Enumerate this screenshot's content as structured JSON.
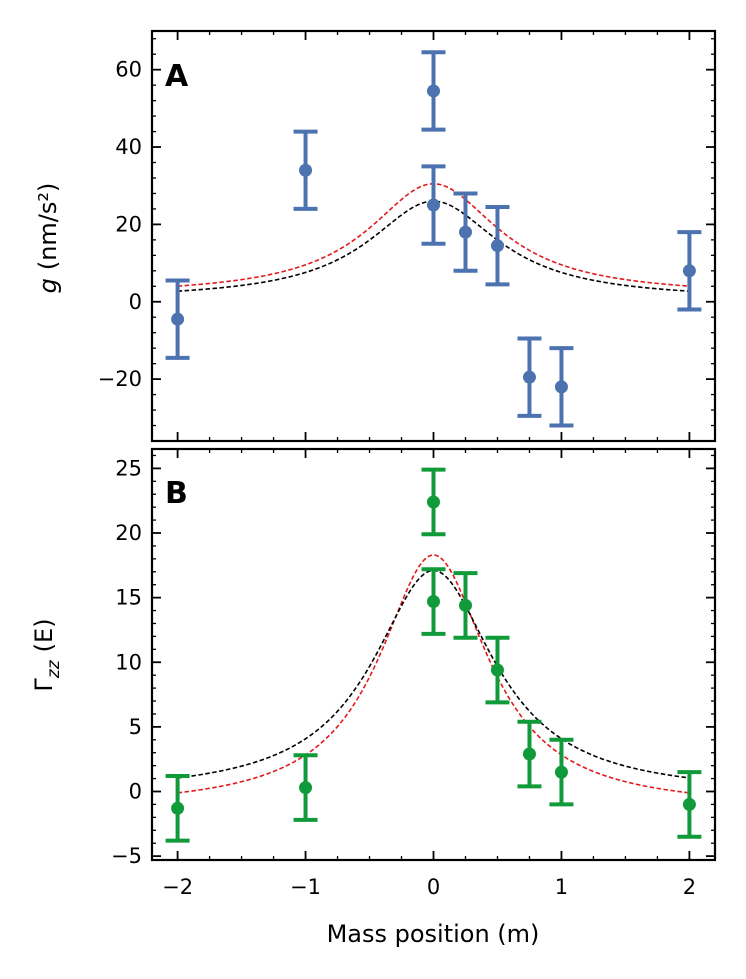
{
  "chart_data": [
    {
      "type": "scatter",
      "panel_label": "A",
      "ylabel_symbol": "g",
      "ylabel_unit": "(nm/s²)",
      "xlabel": "",
      "xlim": [
        -2.2,
        2.2
      ],
      "ylim": [
        -36,
        70
      ],
      "xticks": [
        -2,
        -1,
        0,
        1,
        2
      ],
      "yticks": [
        -20,
        0,
        20,
        40,
        60
      ],
      "ytick_labels": [
        "−20",
        "0",
        "20",
        "40",
        "60"
      ],
      "marker_color": "#4c72b0",
      "series": [
        {
          "name": "measurements",
          "points": [
            {
              "x": -2,
              "y": -4.5,
              "err": 10
            },
            {
              "x": -1,
              "y": 34,
              "err": 10
            },
            {
              "x": 0,
              "y": 54.5,
              "err": 10
            },
            {
              "x": 0,
              "y": 25,
              "err": 10
            },
            {
              "x": 0.25,
              "y": 18,
              "err": 10
            },
            {
              "x": 0.5,
              "y": 14.5,
              "err": 10
            },
            {
              "x": 0.75,
              "y": -19.5,
              "err": 10
            },
            {
              "x": 1,
              "y": -22,
              "err": 10
            },
            {
              "x": 2,
              "y": 8,
              "err": 10
            }
          ]
        }
      ],
      "model_curves": [
        {
          "name": "model-red",
          "color": "#e41a1c",
          "peak": 30.5,
          "base": 1.5,
          "width": 0.62
        },
        {
          "name": "model-black",
          "color": "#000000",
          "peak": 26,
          "base": 0.5,
          "width": 0.62
        }
      ]
    },
    {
      "type": "scatter",
      "panel_label": "B",
      "ylabel_symbol": "Γ",
      "ylabel_sub": "zz",
      "ylabel_unit": "(E)",
      "xlabel": "Mass position (m)",
      "xlim": [
        -2.2,
        2.2
      ],
      "ylim": [
        -5.3,
        26.5
      ],
      "xticks": [
        -2,
        -1,
        0,
        1,
        2
      ],
      "xtick_labels": [
        "−2",
        "−1",
        "0",
        "1",
        "2"
      ],
      "yticks": [
        -5,
        0,
        5,
        10,
        15,
        20,
        25
      ],
      "ytick_labels": [
        "−5",
        "0",
        "5",
        "10",
        "15",
        "20",
        "25"
      ],
      "marker_color": "#109a3a",
      "series": [
        {
          "name": "measurements",
          "points": [
            {
              "x": -2,
              "y": -1.3,
              "err": 2.5
            },
            {
              "x": -1,
              "y": 0.3,
              "err": 2.5
            },
            {
              "x": 0,
              "y": 22.4,
              "err": 2.5
            },
            {
              "x": 0,
              "y": 14.7,
              "err": 2.5
            },
            {
              "x": 0.25,
              "y": 14.4,
              "err": 2.5
            },
            {
              "x": 0.5,
              "y": 9.4,
              "err": 2.5
            },
            {
              "x": 0.75,
              "y": 2.9,
              "err": 2.5
            },
            {
              "x": 1,
              "y": 1.5,
              "err": 2.5
            },
            {
              "x": 2,
              "y": -1,
              "err": 2.5
            }
          ]
        }
      ],
      "model_curves": [
        {
          "name": "model-red",
          "color": "#e41a1c",
          "peak": 18.3,
          "base": -1.35,
          "width": 0.52
        },
        {
          "name": "model-black",
          "color": "#000000",
          "peak": 17.1,
          "base": -0.3,
          "width": 0.58
        }
      ]
    }
  ]
}
